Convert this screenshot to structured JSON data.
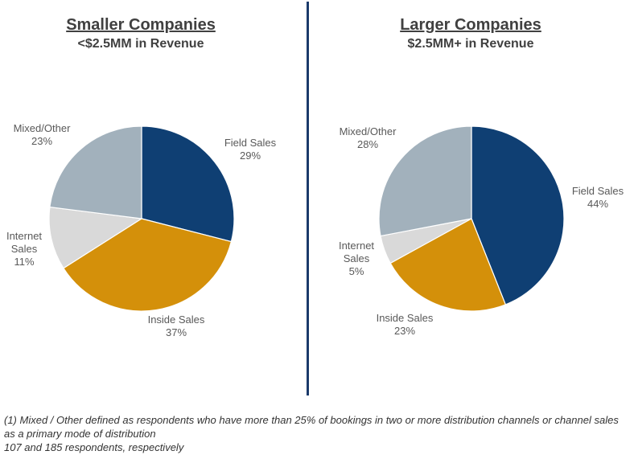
{
  "left_panel": {
    "title": "Smaller Companies",
    "subtitle": "<$2.5MM in Revenue"
  },
  "right_panel": {
    "title": "Larger Companies",
    "subtitle": "$2.5MM+ in Revenue"
  },
  "footnotes": [
    "(1) Mixed / Other defined as respondents who have more than 25% of bookings in two or more distribution channels or channel sales as a primary mode of distribution",
    "107 and 185 respondents, respectively"
  ],
  "colors": {
    "field_sales": "#0f3f73",
    "inside_sales": "#d4900a",
    "internet_sales": "#d9d9d9",
    "mixed_other": "#a2b1bc"
  },
  "chart_data": [
    {
      "type": "pie",
      "title": "Smaller Companies",
      "subtitle": "<$2.5MM in Revenue",
      "slices": [
        {
          "label": "Field Sales",
          "value": 29,
          "display": "29%",
          "color": "#0f3f73"
        },
        {
          "label": "Inside Sales",
          "value": 37,
          "display": "37%",
          "color": "#d4900a"
        },
        {
          "label": "Internet Sales",
          "value": 11,
          "display": "11%",
          "color": "#d9d9d9"
        },
        {
          "label": "Mixed/Other",
          "value": 23,
          "display": "23%",
          "color": "#a2b1bc"
        }
      ]
    },
    {
      "type": "pie",
      "title": "Larger Companies",
      "subtitle": "$2.5MM+ in Revenue",
      "slices": [
        {
          "label": "Field Sales",
          "value": 44,
          "display": "44%",
          "color": "#0f3f73"
        },
        {
          "label": "Inside Sales",
          "value": 23,
          "display": "23%",
          "color": "#d4900a"
        },
        {
          "label": "Internet Sales",
          "value": 5,
          "display": "5%",
          "color": "#d9d9d9"
        },
        {
          "label": "Mixed/Other",
          "value": 28,
          "display": "28%",
          "color": "#a2b1bc"
        }
      ]
    }
  ]
}
